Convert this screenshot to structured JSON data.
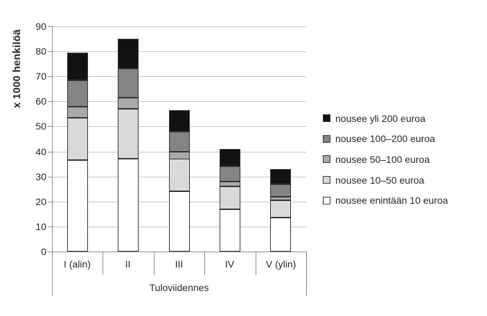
{
  "chart_data": {
    "type": "bar",
    "stacked": true,
    "title": "",
    "xlabel": "Tuloviidennes",
    "ylabel": "x 1000 henkilöä",
    "categories": [
      "I (alin)",
      "II",
      "III",
      "IV",
      "V (ylin)"
    ],
    "series": [
      {
        "name": "nousee enintään 10 euroa",
        "color": "#ffffff",
        "values": [
          36.5,
          37,
          24,
          17,
          13.5
        ]
      },
      {
        "name": "nousee 10–50 euroa",
        "color": "#d9d9d9",
        "values": [
          17,
          20,
          13,
          9,
          7
        ]
      },
      {
        "name": "nousee 50–100 euroa",
        "color": "#a9a9a9",
        "values": [
          4.5,
          4.5,
          3,
          2,
          1.5
        ]
      },
      {
        "name": "nousee 100–200 euroa",
        "color": "#848484",
        "values": [
          10.5,
          11.5,
          8,
          6,
          5
        ]
      },
      {
        "name": "nousee yli 200 euroa",
        "color": "#121212",
        "values": [
          11,
          12,
          8.5,
          7,
          6
        ]
      }
    ],
    "totals": [
      79.5,
      85,
      56.5,
      41,
      33
    ],
    "ylim": [
      0,
      90
    ],
    "ytick_step": 10,
    "yticks": [
      0,
      10,
      20,
      30,
      40,
      50,
      60,
      70,
      80,
      90
    ],
    "grid": true,
    "legend_position": "right",
    "legend_order_top_to_bottom": [
      "nousee yli 200 euroa",
      "nousee 100–200 euroa",
      "nousee 50–100 euroa",
      "nousee 10–50 euroa",
      "nousee enintään 10 euroa"
    ]
  },
  "style": {
    "background": "#ffffff",
    "segment_border": "#333333",
    "gridline": "#c6c6c6",
    "axis_line": "#8c8c8c",
    "text": "#262626"
  }
}
